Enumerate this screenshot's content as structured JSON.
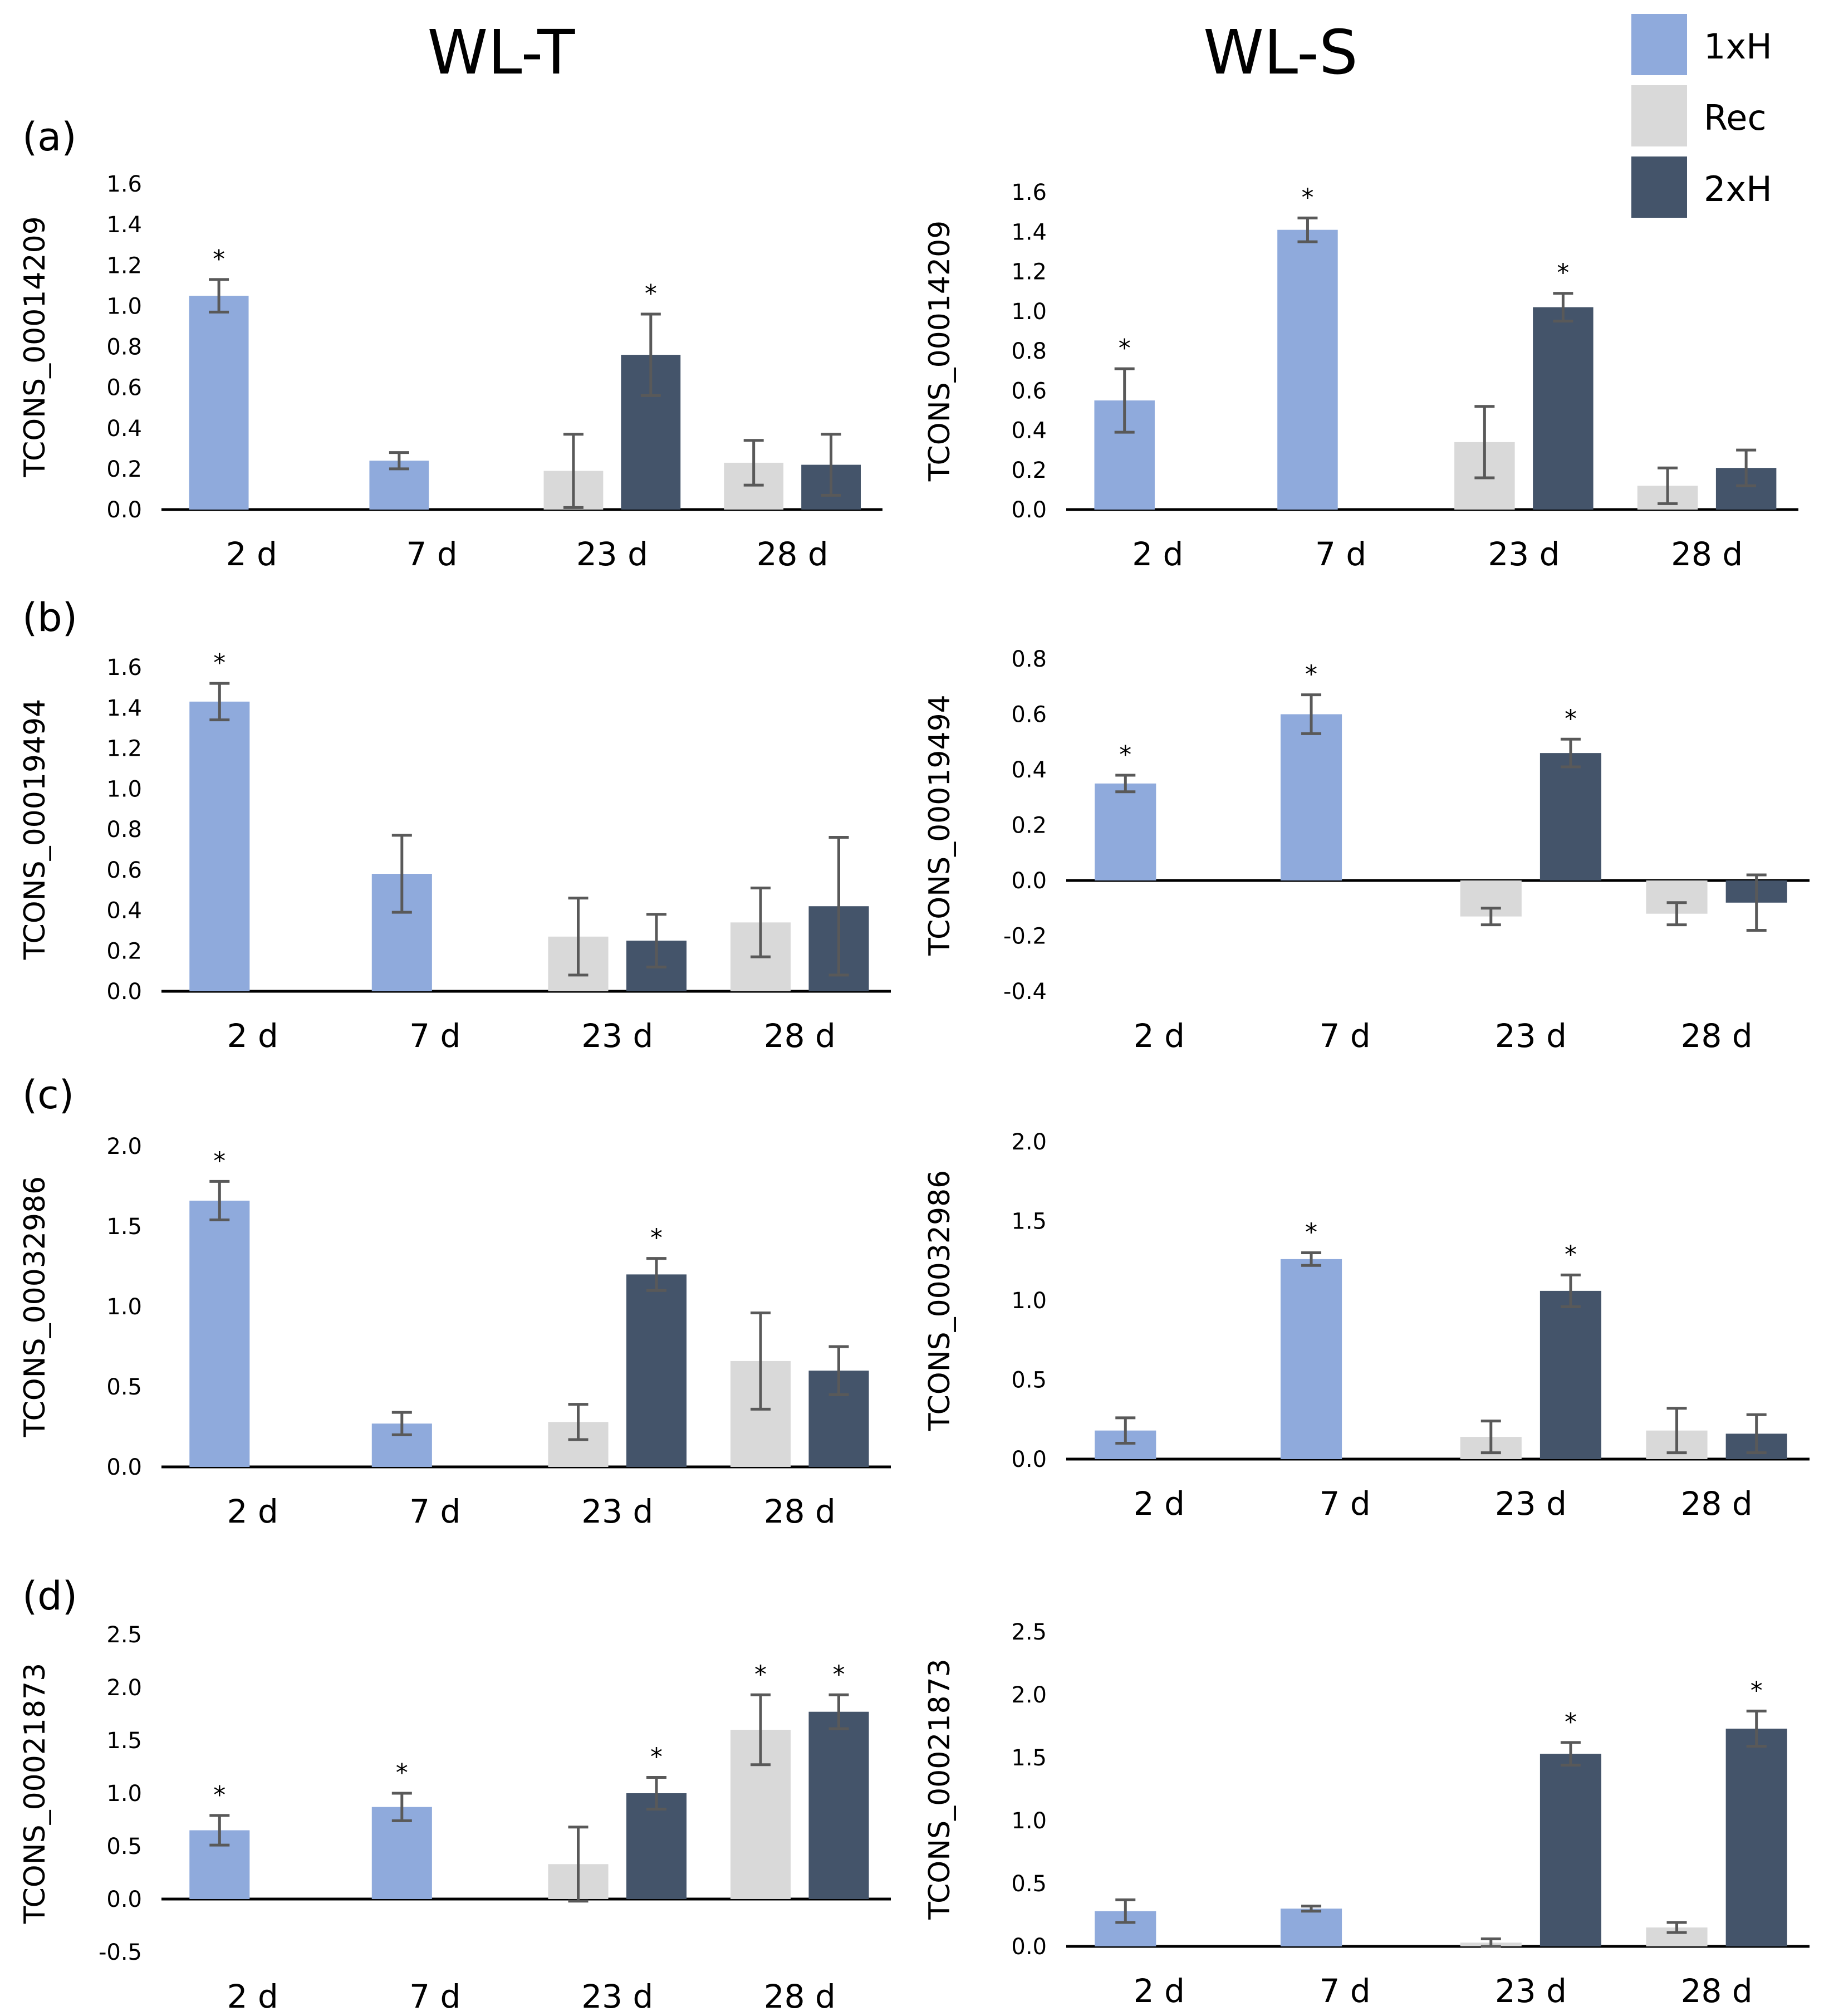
{
  "titles": {
    "left": "WL-T",
    "right": "WL-S"
  },
  "colors": {
    "1xH": "#8faadc",
    "Rec": "#d9d9d9",
    "2xH": "#44546a",
    "error": "#595959",
    "axis": "#000000"
  },
  "legend": [
    {
      "name": "1xH",
      "color": "#8faadc"
    },
    {
      "name": "Rec",
      "color": "#d9d9d9"
    },
    {
      "name": "2xH",
      "color": "#44546a"
    }
  ],
  "panel_labels": [
    "(a)",
    "(b)",
    "(c)",
    "(d)"
  ],
  "chart_data": [
    {
      "type": "bar",
      "panel": "(a)",
      "column": "WL-T",
      "ylabel": "TCONS_00014209",
      "categories": [
        "2 d",
        "7 d",
        "23 d",
        "28 d"
      ],
      "yticks": [
        "0.0",
        "0.2",
        "0.4",
        "0.6",
        "0.8",
        "1.0",
        "1.2",
        "1.4",
        "1.6"
      ],
      "ylim": [
        0,
        1.6
      ],
      "series": [
        {
          "name": "1xH",
          "values": [
            1.05,
            0.24,
            null,
            null
          ],
          "errors": [
            0.08,
            0.04,
            null,
            null
          ],
          "sig": [
            "*",
            "",
            "",
            ""
          ]
        },
        {
          "name": "Rec",
          "values": [
            null,
            null,
            0.19,
            0.23
          ],
          "errors": [
            null,
            null,
            0.18,
            0.11
          ],
          "sig": [
            "",
            "",
            "",
            ""
          ]
        },
        {
          "name": "2xH",
          "values": [
            null,
            null,
            0.76,
            0.22
          ],
          "errors": [
            null,
            null,
            0.2,
            0.15
          ],
          "sig": [
            "",
            "",
            "*",
            ""
          ]
        }
      ]
    },
    {
      "type": "bar",
      "panel": "(a)",
      "column": "WL-S",
      "ylabel": "TCONS_00014209",
      "categories": [
        "2 d",
        "7 d",
        "23 d",
        "28 d"
      ],
      "yticks": [
        "0.0",
        "0.2",
        "0.4",
        "0.6",
        "0.8",
        "1.0",
        "1.2",
        "1.4",
        "1.6"
      ],
      "ylim": [
        0,
        1.6
      ],
      "series": [
        {
          "name": "1xH",
          "values": [
            0.55,
            1.41,
            null,
            null
          ],
          "errors": [
            0.16,
            0.06,
            null,
            null
          ],
          "sig": [
            "*",
            "*",
            "",
            ""
          ]
        },
        {
          "name": "Rec",
          "values": [
            null,
            null,
            0.34,
            0.12
          ],
          "errors": [
            null,
            null,
            0.18,
            0.09
          ],
          "sig": [
            "",
            "",
            "",
            ""
          ]
        },
        {
          "name": "2xH",
          "values": [
            null,
            null,
            1.02,
            0.21
          ],
          "errors": [
            null,
            null,
            0.07,
            0.09
          ],
          "sig": [
            "",
            "",
            "*",
            ""
          ]
        }
      ]
    },
    {
      "type": "bar",
      "panel": "(b)",
      "column": "WL-T",
      "ylabel": "TCONS_00019494",
      "categories": [
        "2 d",
        "7 d",
        "23 d",
        "28 d"
      ],
      "yticks": [
        "0.0",
        "0.2",
        "0.4",
        "0.6",
        "0.8",
        "1.0",
        "1.2",
        "1.4",
        "1.6"
      ],
      "ylim": [
        0,
        1.6
      ],
      "series": [
        {
          "name": "1xH",
          "values": [
            1.43,
            0.58,
            null,
            null
          ],
          "errors": [
            0.09,
            0.19,
            null,
            null
          ],
          "sig": [
            "*",
            "",
            "",
            ""
          ]
        },
        {
          "name": "Rec",
          "values": [
            null,
            null,
            0.27,
            0.34
          ],
          "errors": [
            null,
            null,
            0.19,
            0.17
          ],
          "sig": [
            "",
            "",
            "",
            ""
          ]
        },
        {
          "name": "2xH",
          "values": [
            null,
            null,
            0.25,
            0.42
          ],
          "errors": [
            null,
            null,
            0.13,
            0.34
          ],
          "sig": [
            "",
            "",
            "",
            ""
          ]
        }
      ]
    },
    {
      "type": "bar",
      "panel": "(b)",
      "column": "WL-S",
      "ylabel": "TCONS_00019494",
      "categories": [
        "2 d",
        "7 d",
        "23 d",
        "28 d"
      ],
      "yticks": [
        "-0.4",
        "-0.2",
        "0.0",
        "0.2",
        "0.4",
        "0.6",
        "0.8"
      ],
      "ylim": [
        -0.4,
        0.8
      ],
      "series": [
        {
          "name": "1xH",
          "values": [
            0.35,
            0.6,
            null,
            null
          ],
          "errors": [
            0.03,
            0.07,
            null,
            null
          ],
          "sig": [
            "*",
            "*",
            "",
            ""
          ]
        },
        {
          "name": "Rec",
          "values": [
            null,
            null,
            -0.13,
            -0.12
          ],
          "errors": [
            null,
            null,
            0.03,
            0.04
          ],
          "sig": [
            "",
            "",
            "",
            ""
          ]
        },
        {
          "name": "2xH",
          "values": [
            null,
            null,
            0.46,
            -0.08
          ],
          "errors": [
            null,
            null,
            0.05,
            0.1
          ],
          "sig": [
            "",
            "",
            "*",
            ""
          ]
        }
      ]
    },
    {
      "type": "bar",
      "panel": "(c)",
      "column": "WL-T",
      "ylabel": "TCONS_00032986",
      "categories": [
        "2 d",
        "7 d",
        "23 d",
        "28 d"
      ],
      "yticks": [
        "0.0",
        "0.5",
        "1.0",
        "1.5",
        "2.0"
      ],
      "ylim": [
        0,
        2.0
      ],
      "series": [
        {
          "name": "1xH",
          "values": [
            1.66,
            0.27,
            null,
            null
          ],
          "errors": [
            0.12,
            0.07,
            null,
            null
          ],
          "sig": [
            "*",
            "",
            "",
            ""
          ]
        },
        {
          "name": "Rec",
          "values": [
            null,
            null,
            0.28,
            0.66
          ],
          "errors": [
            null,
            null,
            0.11,
            0.3
          ],
          "sig": [
            "",
            "",
            "",
            ""
          ]
        },
        {
          "name": "2xH",
          "values": [
            null,
            null,
            1.2,
            0.6
          ],
          "errors": [
            null,
            null,
            0.1,
            0.15
          ],
          "sig": [
            "",
            "",
            "*",
            ""
          ]
        }
      ]
    },
    {
      "type": "bar",
      "panel": "(c)",
      "column": "WL-S",
      "ylabel": "TCONS_00032986",
      "categories": [
        "2 d",
        "7 d",
        "23 d",
        "28 d"
      ],
      "yticks": [
        "0.0",
        "0.5",
        "1.0",
        "1.5",
        "2.0"
      ],
      "ylim": [
        0,
        2.0
      ],
      "series": [
        {
          "name": "1xH",
          "values": [
            0.18,
            1.26,
            null,
            null
          ],
          "errors": [
            0.08,
            0.04,
            null,
            null
          ],
          "sig": [
            "",
            "*",
            "",
            ""
          ]
        },
        {
          "name": "Rec",
          "values": [
            null,
            null,
            0.14,
            0.18
          ],
          "errors": [
            null,
            null,
            0.1,
            0.14
          ],
          "sig": [
            "",
            "",
            "",
            ""
          ]
        },
        {
          "name": "2xH",
          "values": [
            null,
            null,
            1.06,
            0.16
          ],
          "errors": [
            null,
            null,
            0.1,
            0.12
          ],
          "sig": [
            "",
            "",
            "*",
            ""
          ]
        }
      ]
    },
    {
      "type": "bar",
      "panel": "(d)",
      "column": "WL-T",
      "ylabel": "TCONS_00021873",
      "categories": [
        "2 d",
        "7 d",
        "23 d",
        "28 d"
      ],
      "yticks": [
        "-0.5",
        "0.0",
        "0.5",
        "1.0",
        "1.5",
        "2.0",
        "2.5"
      ],
      "ylim": [
        -0.5,
        2.5
      ],
      "series": [
        {
          "name": "1xH",
          "values": [
            0.65,
            0.87,
            null,
            null
          ],
          "errors": [
            0.14,
            0.13,
            null,
            null
          ],
          "sig": [
            "*",
            "*",
            "",
            ""
          ]
        },
        {
          "name": "Rec",
          "values": [
            null,
            null,
            0.33,
            1.6
          ],
          "errors": [
            null,
            null,
            0.35,
            0.33
          ],
          "sig": [
            "",
            "",
            "",
            "*"
          ]
        },
        {
          "name": "2xH",
          "values": [
            null,
            null,
            1.0,
            1.77
          ],
          "errors": [
            null,
            null,
            0.15,
            0.16
          ],
          "sig": [
            "",
            "",
            "*",
            "*"
          ]
        }
      ]
    },
    {
      "type": "bar",
      "panel": "(d)",
      "column": "WL-S",
      "ylabel": "TCONS_00021873",
      "categories": [
        "2 d",
        "7 d",
        "23 d",
        "28 d"
      ],
      "yticks": [
        "0.0",
        "0.5",
        "1.0",
        "1.5",
        "2.0",
        "2.5"
      ],
      "ylim": [
        0,
        2.5
      ],
      "series": [
        {
          "name": "1xH",
          "values": [
            0.28,
            0.3,
            null,
            null
          ],
          "errors": [
            0.09,
            0.02,
            null,
            null
          ],
          "sig": [
            "",
            "",
            "",
            ""
          ]
        },
        {
          "name": "Rec",
          "values": [
            null,
            null,
            0.03,
            0.15
          ],
          "errors": [
            null,
            null,
            0.03,
            0.04
          ],
          "sig": [
            "",
            "",
            "",
            ""
          ]
        },
        {
          "name": "2xH",
          "values": [
            null,
            null,
            1.53,
            1.73
          ],
          "errors": [
            null,
            null,
            0.09,
            0.14
          ],
          "sig": [
            "",
            "",
            "*",
            "*"
          ]
        }
      ]
    }
  ]
}
